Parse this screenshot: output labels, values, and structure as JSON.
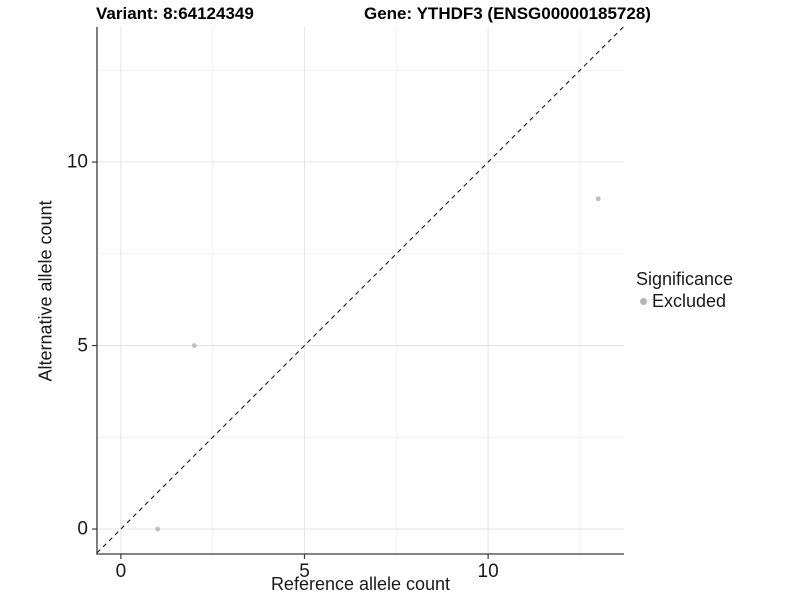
{
  "chart_data": {
    "type": "scatter",
    "title_left": "Variant: 8:64124349",
    "title_right": "Gene: YTHDF3 (ENSG00000185728)",
    "xlabel": "Reference allele count",
    "ylabel": "Alternative allele count",
    "xlim": [
      -0.65,
      13.7
    ],
    "ylim": [
      -0.68,
      13.68
    ],
    "x_major_ticks": [
      0,
      5,
      10
    ],
    "y_major_ticks": [
      0,
      5,
      10
    ],
    "x_minor_ticks": [
      2.5,
      7.5,
      12.5
    ],
    "y_minor_ticks": [
      2.5,
      7.5,
      12.5
    ],
    "grid": true,
    "points": [
      {
        "x": 1,
        "y": 0,
        "series": "Excluded"
      },
      {
        "x": 2,
        "y": 5,
        "series": "Excluded"
      },
      {
        "x": 13,
        "y": 9,
        "series": "Excluded"
      }
    ],
    "reference_line": {
      "type": "abline",
      "slope": 1,
      "intercept": 0,
      "style": "dashed"
    },
    "legend": {
      "title": "Significance",
      "position": "right",
      "items": [
        {
          "label": "Excluded",
          "color": "#bdbdbd"
        }
      ]
    },
    "colors": {
      "point": "#bdbdbd",
      "legend_key": "#b3b3b3",
      "grid_major": "#e4e4e4",
      "grid_minor": "#f1f1f1",
      "axis_line": "#3a3a3a",
      "reference_line": "#1a1a1a",
      "background": "#ffffff"
    }
  }
}
